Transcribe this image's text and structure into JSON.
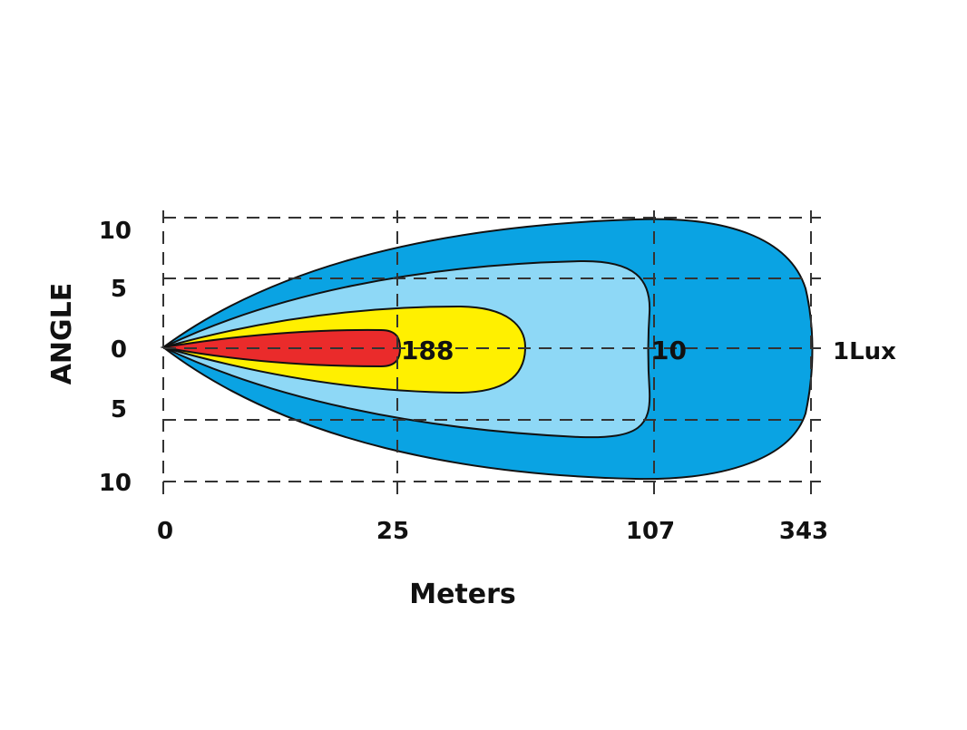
{
  "chart_data": {
    "type": "area",
    "title": "",
    "xlabel": "Meters",
    "ylabel": "ANGLE",
    "x_ticks": [
      "0",
      "25",
      "107",
      "343"
    ],
    "y_ticks": [
      "10",
      "5",
      "0",
      "5",
      "10"
    ],
    "y_tick_values": [
      10,
      5,
      0,
      -5,
      -10
    ],
    "grid": true,
    "contours": [
      {
        "label": "1Lux",
        "color": "#0aa3e3",
        "x_ticks_reach": 343,
        "half_angle_deg": 10
      },
      {
        "label": "10",
        "color": "#8ed8f6",
        "x_ticks_reach": 107,
        "half_angle_deg": 7
      },
      {
        "label": "",
        "color": "#fff000",
        "half_angle_deg": 3.5
      },
      {
        "label": "188",
        "color": "#ea2b2b",
        "x_ticks_reach": 25,
        "half_angle_deg": 1.5
      }
    ],
    "annotations": [
      "188",
      "10",
      "1Lux"
    ]
  }
}
